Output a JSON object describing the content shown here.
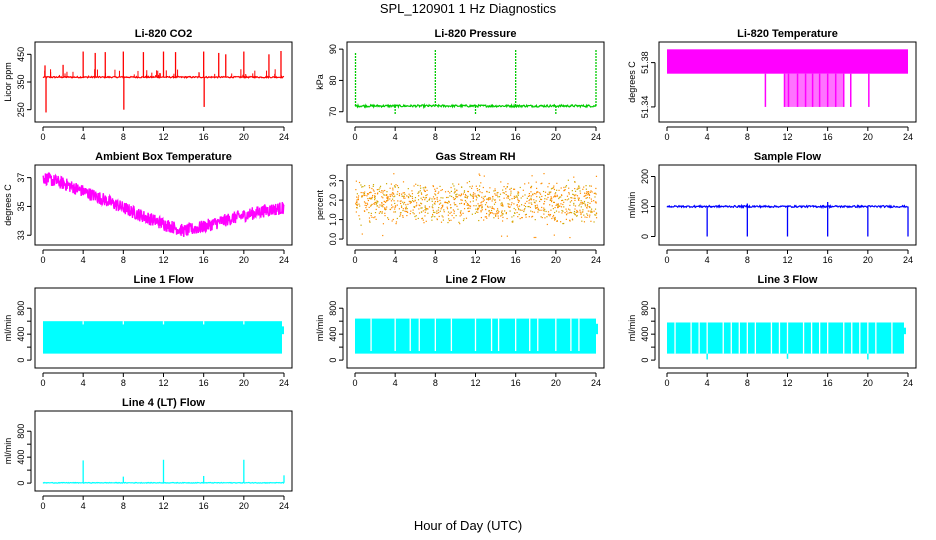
{
  "figure": {
    "title": "SPL_120901  1 Hz Diagnostics",
    "xlabel": "Hour of Day (UTC)"
  },
  "chart_data": [
    {
      "type": "line",
      "title": "Li-820 CO2",
      "ylabel": "Licor ppm",
      "color": "#ff0000",
      "xlim": [
        0,
        24
      ],
      "ylim": [
        220,
        480
      ],
      "xticks": [
        0,
        4,
        8,
        12,
        16,
        20,
        24
      ],
      "yticks": [
        250,
        350,
        450
      ],
      "yticklabels": [
        "250",
        "350",
        "450"
      ],
      "baseline": [
        365,
        370
      ],
      "spikes": [
        {
          "x": 0.2,
          "y": 410
        },
        {
          "x": 0.3,
          "y": 240
        },
        {
          "x": 2.0,
          "y": 412
        },
        {
          "x": 4.0,
          "y": 460
        },
        {
          "x": 5.2,
          "y": 455
        },
        {
          "x": 6.2,
          "y": 458
        },
        {
          "x": 8.0,
          "y": 460
        },
        {
          "x": 8.05,
          "y": 250
        },
        {
          "x": 10.0,
          "y": 458
        },
        {
          "x": 12.0,
          "y": 460
        },
        {
          "x": 13.2,
          "y": 458
        },
        {
          "x": 16.0,
          "y": 460
        },
        {
          "x": 16.05,
          "y": 260
        },
        {
          "x": 17.5,
          "y": 455
        },
        {
          "x": 18.2,
          "y": 450
        },
        {
          "x": 20.0,
          "y": 460
        },
        {
          "x": 22.5,
          "y": 450
        },
        {
          "x": 23.7,
          "y": 462
        }
      ]
    },
    {
      "type": "line",
      "title": "Li-820 Pressure",
      "ylabel": "kPa",
      "color": "#00cc00",
      "xlim": [
        0,
        24
      ],
      "ylim": [
        68,
        91
      ],
      "xticks": [
        0,
        4,
        8,
        12,
        16,
        20,
        24
      ],
      "yticks": [
        70,
        80,
        90
      ],
      "yticklabels": [
        "70",
        "80",
        "90"
      ],
      "baseline": [
        71.5,
        72.2
      ],
      "spikes": [
        {
          "x": 0.05,
          "y": 89
        },
        {
          "x": 4.0,
          "y": 69
        },
        {
          "x": 8.0,
          "y": 90
        },
        {
          "x": 12.0,
          "y": 69
        },
        {
          "x": 16.0,
          "y": 90
        },
        {
          "x": 20.0,
          "y": 69
        },
        {
          "x": 24.0,
          "y": 90
        }
      ]
    },
    {
      "type": "area",
      "title": "Li-820 Temperature",
      "ylabel": "degrees C",
      "color": "#ff00ff",
      "xlim": [
        0,
        24
      ],
      "ylim": [
        51.33,
        51.395
      ],
      "xticks": [
        0,
        4,
        8,
        12,
        16,
        20,
        24
      ],
      "yticks": [
        51.34,
        51.38
      ],
      "yticklabels": [
        "51.34",
        "51.38"
      ],
      "band": [
        51.37,
        51.392
      ],
      "drops": [
        {
          "x": 9.8,
          "y": 51.34
        },
        {
          "x": 11.7,
          "y": 51.34
        },
        {
          "x": 12.1,
          "y": 51.34
        },
        {
          "x": 13.0,
          "y": 51.34
        },
        {
          "x": 13.8,
          "y": 51.34
        },
        {
          "x": 14.5,
          "y": 51.34
        },
        {
          "x": 15.2,
          "y": 51.34
        },
        {
          "x": 16.0,
          "y": 51.34
        },
        {
          "x": 16.8,
          "y": 51.34
        },
        {
          "x": 17.6,
          "y": 51.34
        },
        {
          "x": 18.3,
          "y": 51.34
        },
        {
          "x": 20.1,
          "y": 51.34
        }
      ]
    },
    {
      "type": "line",
      "title": "Ambient Box Temperature",
      "ylabel": "degrees C",
      "color": "#ff00ff",
      "xlim": [
        0,
        24
      ],
      "ylim": [
        32.6,
        37.6
      ],
      "xticks": [
        0,
        4,
        8,
        12,
        16,
        20,
        24
      ],
      "yticks": [
        33,
        35,
        37
      ],
      "yticklabels": [
        "33",
        "35",
        "37"
      ],
      "center": [
        [
          0,
          37.0
        ],
        [
          2,
          36.6
        ],
        [
          6,
          35.5
        ],
        [
          10,
          34.3
        ],
        [
          14,
          33.3
        ],
        [
          16,
          33.6
        ],
        [
          19,
          34.2
        ],
        [
          22,
          34.7
        ],
        [
          24,
          34.9
        ]
      ],
      "halfwidth": 0.45
    },
    {
      "type": "scatter",
      "title": "Gas Stream RH",
      "ylabel": "percent",
      "color": "#ff8c00",
      "color2": "#ccaa00",
      "xlim": [
        0,
        24
      ],
      "ylim": [
        -0.1,
        3.6
      ],
      "xticks": [
        0,
        4,
        8,
        12,
        16,
        20,
        24
      ],
      "yticks": [
        0.0,
        1.0,
        2.0,
        3.0
      ],
      "yticklabels": [
        "0.0",
        "1.0",
        "2.0",
        "3.0"
      ],
      "center": 1.9,
      "spread": 1.2
    },
    {
      "type": "line",
      "title": "Sample Flow",
      "ylabel": "ml/min",
      "color": "#0000ff",
      "xlim": [
        0,
        24
      ],
      "ylim": [
        -15,
        225
      ],
      "xticks": [
        0,
        4,
        8,
        12,
        16,
        20,
        24
      ],
      "yticks": [
        0,
        100,
        200
      ],
      "yticklabels": [
        "0",
        "100",
        "200"
      ],
      "baseline": [
        97,
        103
      ],
      "spikes": [
        {
          "x": 4.0,
          "y": 0
        },
        {
          "x": 8.0,
          "y": 0
        },
        {
          "x": 12.0,
          "y": 0
        },
        {
          "x": 16.0,
          "y": 0
        },
        {
          "x": 20.0,
          "y": 0
        },
        {
          "x": 24.0,
          "y": 0
        },
        {
          "x": 8.0,
          "y": 110
        },
        {
          "x": 16.0,
          "y": 115
        }
      ]
    },
    {
      "type": "area",
      "title": "Line 1 Flow",
      "ylabel": "ml/min",
      "color": "#00ffff",
      "xlim": [
        0,
        24
      ],
      "ylim": [
        -60,
        1050
      ],
      "xticks": [
        0,
        4,
        8,
        12,
        16,
        20,
        24
      ],
      "yticks": [
        0,
        200,
        400,
        600,
        800
      ],
      "yticklabels": [
        "0",
        "",
        "400",
        "",
        "800"
      ],
      "band": [
        100,
        600
      ],
      "gaps": [
        4.0,
        8.0,
        12.0,
        16.0,
        20.0
      ],
      "gapdepth": 50,
      "xend": 23.8
    },
    {
      "type": "area",
      "title": "Line 2 Flow",
      "ylabel": "ml/min",
      "color": "#00ffff",
      "xlim": [
        0,
        24
      ],
      "ylim": [
        -60,
        1050
      ],
      "xticks": [
        0,
        4,
        8,
        12,
        16,
        20,
        24
      ],
      "yticks": [
        0,
        200,
        400,
        600,
        800
      ],
      "yticklabels": [
        "0",
        "",
        "400",
        "",
        "800"
      ],
      "band": [
        100,
        640
      ],
      "gaps": [
        1.6,
        4.0,
        5.5,
        6.4,
        8.0,
        9.6,
        12.0,
        13.6,
        14.3,
        16.0,
        17.4,
        18.2,
        20.0,
        21.5,
        22.3
      ],
      "gapdepth": 500,
      "xend": 24.0
    },
    {
      "type": "area",
      "title": "Line 3 Flow",
      "ylabel": "ml/min",
      "color": "#00ffff",
      "xlim": [
        0,
        24
      ],
      "ylim": [
        -60,
        1050
      ],
      "xticks": [
        0,
        4,
        8,
        12,
        16,
        20,
        24
      ],
      "yticks": [
        0,
        200,
        400,
        600,
        800
      ],
      "yticklabels": [
        "0",
        "",
        "400",
        "",
        "800"
      ],
      "band": [
        100,
        580
      ],
      "gaps": [
        0.8,
        2.4,
        3.2,
        4.0,
        5.6,
        6.4,
        7.2,
        8.0,
        8.8,
        10.4,
        11.2,
        12.0,
        13.6,
        14.4,
        15.2,
        16.0,
        17.6,
        18.4,
        19.2,
        20.0,
        20.8,
        22.4
      ],
      "gapdepth": 480,
      "dips": [
        {
          "x": 4.0,
          "y": 10
        },
        {
          "x": 12.0,
          "y": 20
        },
        {
          "x": 20.0,
          "y": 10
        }
      ],
      "xend": 23.6
    },
    {
      "type": "line",
      "title": "Line 4 (LT) Flow",
      "ylabel": "ml/min",
      "color": "#00ffff",
      "xlim": [
        0,
        24
      ],
      "ylim": [
        -60,
        1050
      ],
      "xticks": [
        0,
        4,
        8,
        12,
        16,
        20,
        24
      ],
      "yticks": [
        0,
        200,
        400,
        600,
        800
      ],
      "yticklabels": [
        "0",
        "",
        "400",
        "",
        "800"
      ],
      "baseline": [
        0,
        10
      ],
      "spikes": [
        {
          "x": 4.0,
          "y": 350
        },
        {
          "x": 8.0,
          "y": 100
        },
        {
          "x": 12.0,
          "y": 360
        },
        {
          "x": 16.0,
          "y": 110
        },
        {
          "x": 20.0,
          "y": 360
        },
        {
          "x": 24.0,
          "y": 120
        }
      ]
    }
  ]
}
